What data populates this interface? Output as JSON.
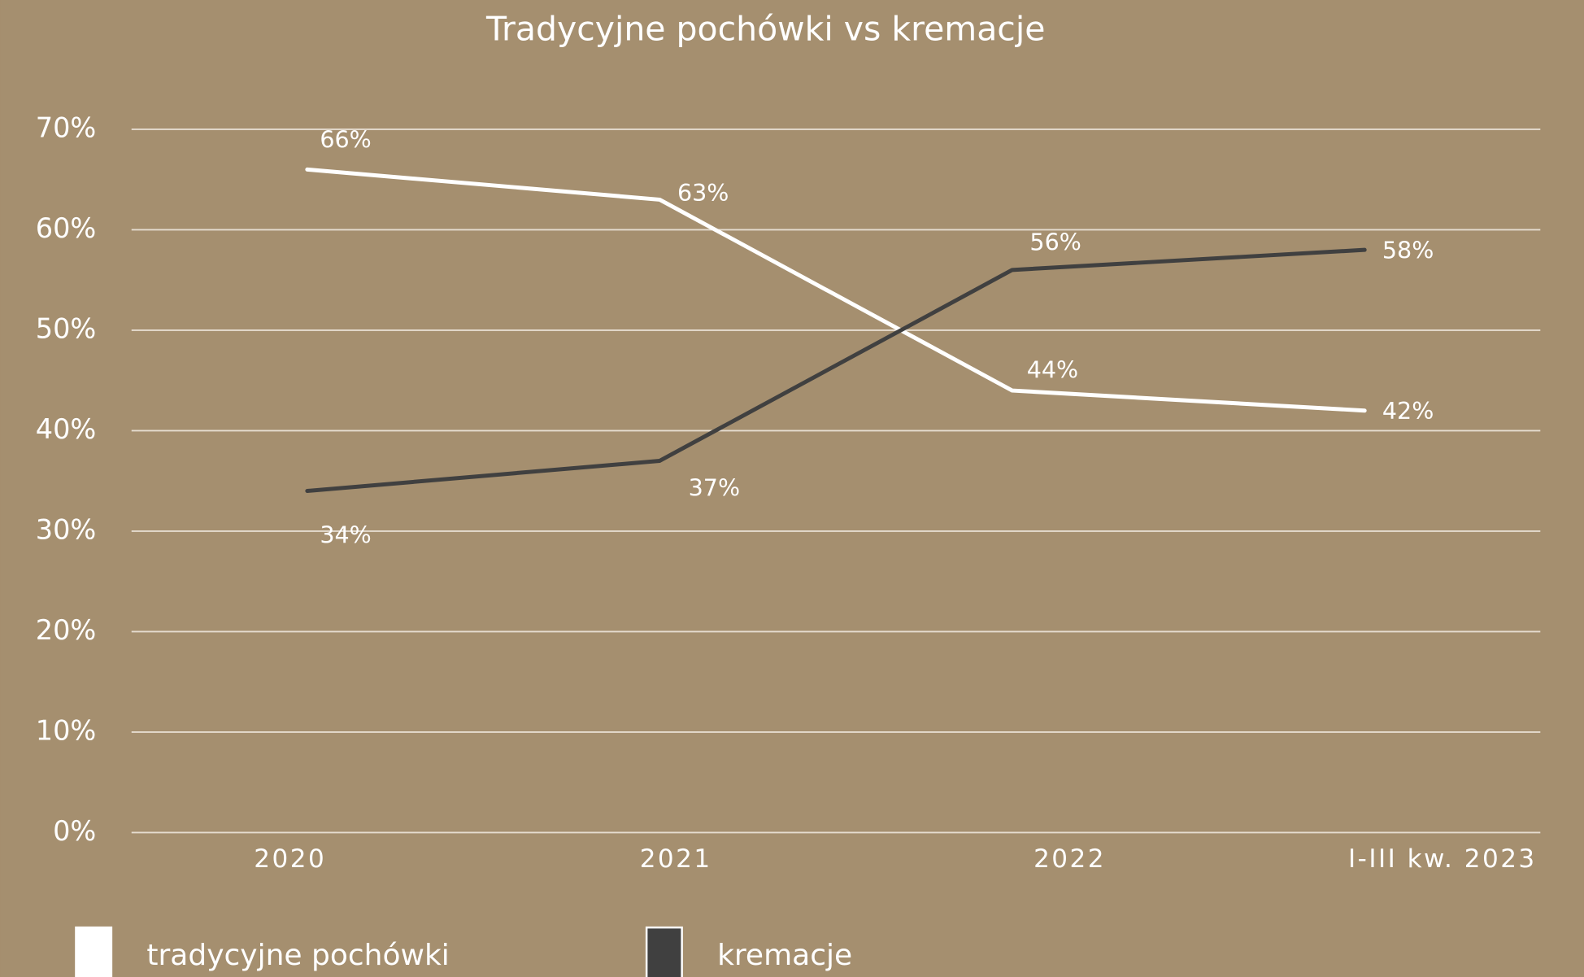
{
  "chart_data": {
    "type": "line",
    "title": "Tradycyjne pochówki vs kremacje",
    "categories": [
      "2020",
      "2021",
      "2022",
      "I-III kw. 2023"
    ],
    "series": [
      {
        "name": "tradycyjne pochówki",
        "color": "#ffffff",
        "values": [
          66,
          63,
          44,
          42
        ],
        "value_labels": [
          "66%",
          "63%",
          "44%",
          "42%"
        ]
      },
      {
        "name": "kremacje",
        "color": "#404040",
        "values": [
          34,
          37,
          56,
          58
        ],
        "value_labels": [
          "34%",
          "37%",
          "56%",
          "58%"
        ]
      }
    ],
    "ylim": [
      0,
      70
    ],
    "yticks": [
      {
        "value": 0,
        "label": "0%"
      },
      {
        "value": 10,
        "label": "10%"
      },
      {
        "value": 20,
        "label": "20%"
      },
      {
        "value": 30,
        "label": "30%"
      },
      {
        "value": 40,
        "label": "40%"
      },
      {
        "value": 50,
        "label": "50%"
      },
      {
        "value": 60,
        "label": "60%"
      },
      {
        "value": 70,
        "label": "70%"
      }
    ],
    "grid": true,
    "legend": "bottom"
  }
}
